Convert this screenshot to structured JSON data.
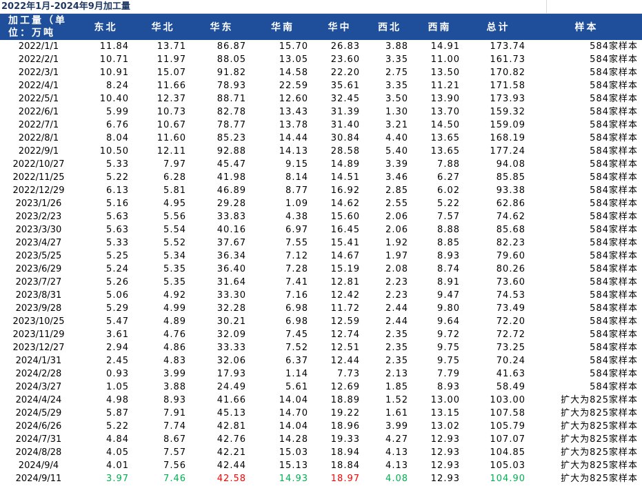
{
  "title": "2022年1月-2024年9月加工量",
  "table": {
    "header": [
      "加工量（单位：万吨",
      "东北",
      "华北",
      "华东",
      "华南",
      "华中",
      "西北",
      "西南",
      "总计",
      "样本"
    ],
    "rows": [
      [
        "2022/1/1",
        "11.84",
        "13.71",
        "86.87",
        "15.70",
        "26.83",
        "3.88",
        "14.91",
        "173.74",
        "584家样本"
      ],
      [
        "2022/2/1",
        "10.71",
        "11.97",
        "88.05",
        "13.05",
        "23.60",
        "3.35",
        "11.00",
        "161.73",
        "584家样本"
      ],
      [
        "2022/3/1",
        "10.91",
        "15.07",
        "91.82",
        "14.58",
        "22.20",
        "2.75",
        "13.50",
        "170.82",
        "584家样本"
      ],
      [
        "2022/4/1",
        "8.24",
        "11.66",
        "78.93",
        "22.59",
        "35.61",
        "3.35",
        "11.21",
        "171.58",
        "584家样本"
      ],
      [
        "2022/5/1",
        "10.40",
        "12.37",
        "88.71",
        "12.60",
        "32.45",
        "3.50",
        "13.90",
        "173.93",
        "584家样本"
      ],
      [
        "2022/6/1",
        "5.99",
        "10.73",
        "82.78",
        "13.43",
        "31.39",
        "1.30",
        "13.70",
        "159.32",
        "584家样本"
      ],
      [
        "2022/7/1",
        "6.76",
        "10.67",
        "78.77",
        "13.78",
        "31.40",
        "3.21",
        "14.50",
        "159.09",
        "584家样本"
      ],
      [
        "2022/8/1",
        "8.04",
        "11.60",
        "85.23",
        "14.44",
        "30.84",
        "4.40",
        "13.65",
        "168.19",
        "584家样本"
      ],
      [
        "2022/9/1",
        "10.50",
        "12.11",
        "92.88",
        "14.13",
        "28.58",
        "5.40",
        "13.65",
        "177.24",
        "584家样本"
      ],
      [
        "2022/10/27",
        "5.33",
        "7.97",
        "45.47",
        "9.15",
        "14.89",
        "3.39",
        "7.88",
        "94.08",
        "584家样本"
      ],
      [
        "2022/11/25",
        "5.22",
        "6.28",
        "41.98",
        "8.14",
        "14.51",
        "3.46",
        "6.27",
        "85.85",
        "584家样本"
      ],
      [
        "2022/12/29",
        "6.13",
        "5.81",
        "46.89",
        "8.77",
        "16.92",
        "2.85",
        "6.02",
        "93.38",
        "584家样本"
      ],
      [
        "2023/1/26",
        "5.16",
        "4.95",
        "29.28",
        "1.09",
        "14.62",
        "2.55",
        "5.22",
        "62.86",
        "584家样本"
      ],
      [
        "2023/2/23",
        "5.63",
        "5.56",
        "33.83",
        "4.38",
        "15.60",
        "2.06",
        "7.57",
        "74.62",
        "584家样本"
      ],
      [
        "2023/3/30",
        "5.63",
        "5.54",
        "40.16",
        "6.97",
        "16.45",
        "2.06",
        "8.88",
        "85.68",
        "584家样本"
      ],
      [
        "2023/4/27",
        "5.33",
        "5.52",
        "37.67",
        "7.55",
        "15.41",
        "1.92",
        "8.85",
        "82.23",
        "584家样本"
      ],
      [
        "2023/5/25",
        "5.25",
        "5.34",
        "36.34",
        "7.12",
        "14.67",
        "1.97",
        "8.93",
        "79.60",
        "584家样本"
      ],
      [
        "2023/6/29",
        "5.24",
        "5.35",
        "36.40",
        "7.28",
        "15.19",
        "2.08",
        "8.74",
        "80.26",
        "584家样本"
      ],
      [
        "2023/7/27",
        "5.26",
        "5.35",
        "31.64",
        "7.41",
        "12.81",
        "2.23",
        "8.91",
        "73.60",
        "584家样本"
      ],
      [
        "2023/8/31",
        "5.06",
        "4.92",
        "33.30",
        "7.16",
        "12.42",
        "2.23",
        "9.47",
        "74.53",
        "584家样本"
      ],
      [
        "2023/9/28",
        "5.29",
        "4.99",
        "32.28",
        "6.98",
        "11.72",
        "2.44",
        "9.80",
        "73.49",
        "584家样本"
      ],
      [
        "2023/10/25",
        "5.47",
        "4.89",
        "30.21",
        "6.98",
        "12.59",
        "2.44",
        "9.64",
        "72.20",
        "584家样本"
      ],
      [
        "2023/11/29",
        "3.61",
        "4.76",
        "32.09",
        "7.45",
        "12.74",
        "2.35",
        "9.72",
        "72.72",
        "584家样本"
      ],
      [
        "2023/12/27",
        "2.94",
        "4.86",
        "33.33",
        "7.52",
        "12.51",
        "2.35",
        "9.75",
        "73.25",
        "584家样本"
      ],
      [
        "2024/1/31",
        "2.45",
        "4.83",
        "32.06",
        "6.37",
        "12.44",
        "2.35",
        "9.75",
        "70.24",
        "584家样本"
      ],
      [
        "2024/2/28",
        "0.93",
        "3.99",
        "17.93",
        "1.14",
        "7.73",
        "2.13",
        "7.79",
        "41.63",
        "584家样本"
      ],
      [
        "2024/3/27",
        "1.05",
        "3.88",
        "24.49",
        "5.61",
        "12.69",
        "1.85",
        "8.93",
        "58.49",
        "584家样本"
      ],
      [
        "2024/4/24",
        "4.98",
        "8.93",
        "41.66",
        "14.04",
        "18.89",
        "1.52",
        "13.00",
        "103.00",
        "扩大为825家样本"
      ],
      [
        "2024/5/29",
        "5.87",
        "7.91",
        "45.13",
        "14.70",
        "19.22",
        "1.61",
        "13.15",
        "107.58",
        "扩大为825家样本"
      ],
      [
        "2024/6/26",
        "5.22",
        "7.74",
        "42.81",
        "14.04",
        "18.96",
        "3.99",
        "13.02",
        "105.79",
        "扩大为825家样本"
      ],
      [
        "2024/7/31",
        "4.84",
        "8.67",
        "42.76",
        "14.28",
        "19.33",
        "4.27",
        "12.93",
        "107.07",
        "扩大为825家样本"
      ],
      [
        "2024/8/28",
        "4.05",
        "7.57",
        "42.21",
        "15.03",
        "18.94",
        "4.13",
        "12.93",
        "104.85",
        "扩大为825家样本"
      ],
      [
        "2024/9/4",
        "4.01",
        "7.56",
        "42.44",
        "15.13",
        "18.84",
        "4.13",
        "12.93",
        "105.03",
        "扩大为825家样本"
      ],
      [
        "2024/9/11",
        "3.97",
        "7.46",
        "42.58",
        "14.93",
        "18.97",
        "4.08",
        "12.93",
        "104.90",
        "扩大为825家样本"
      ]
    ],
    "last_row_colors": [
      "#000000",
      "#00b050",
      "#00b050",
      "#ff0000",
      "#00b050",
      "#ff0000",
      "#00b050",
      "#000000",
      "#00b050",
      "#000000"
    ]
  }
}
